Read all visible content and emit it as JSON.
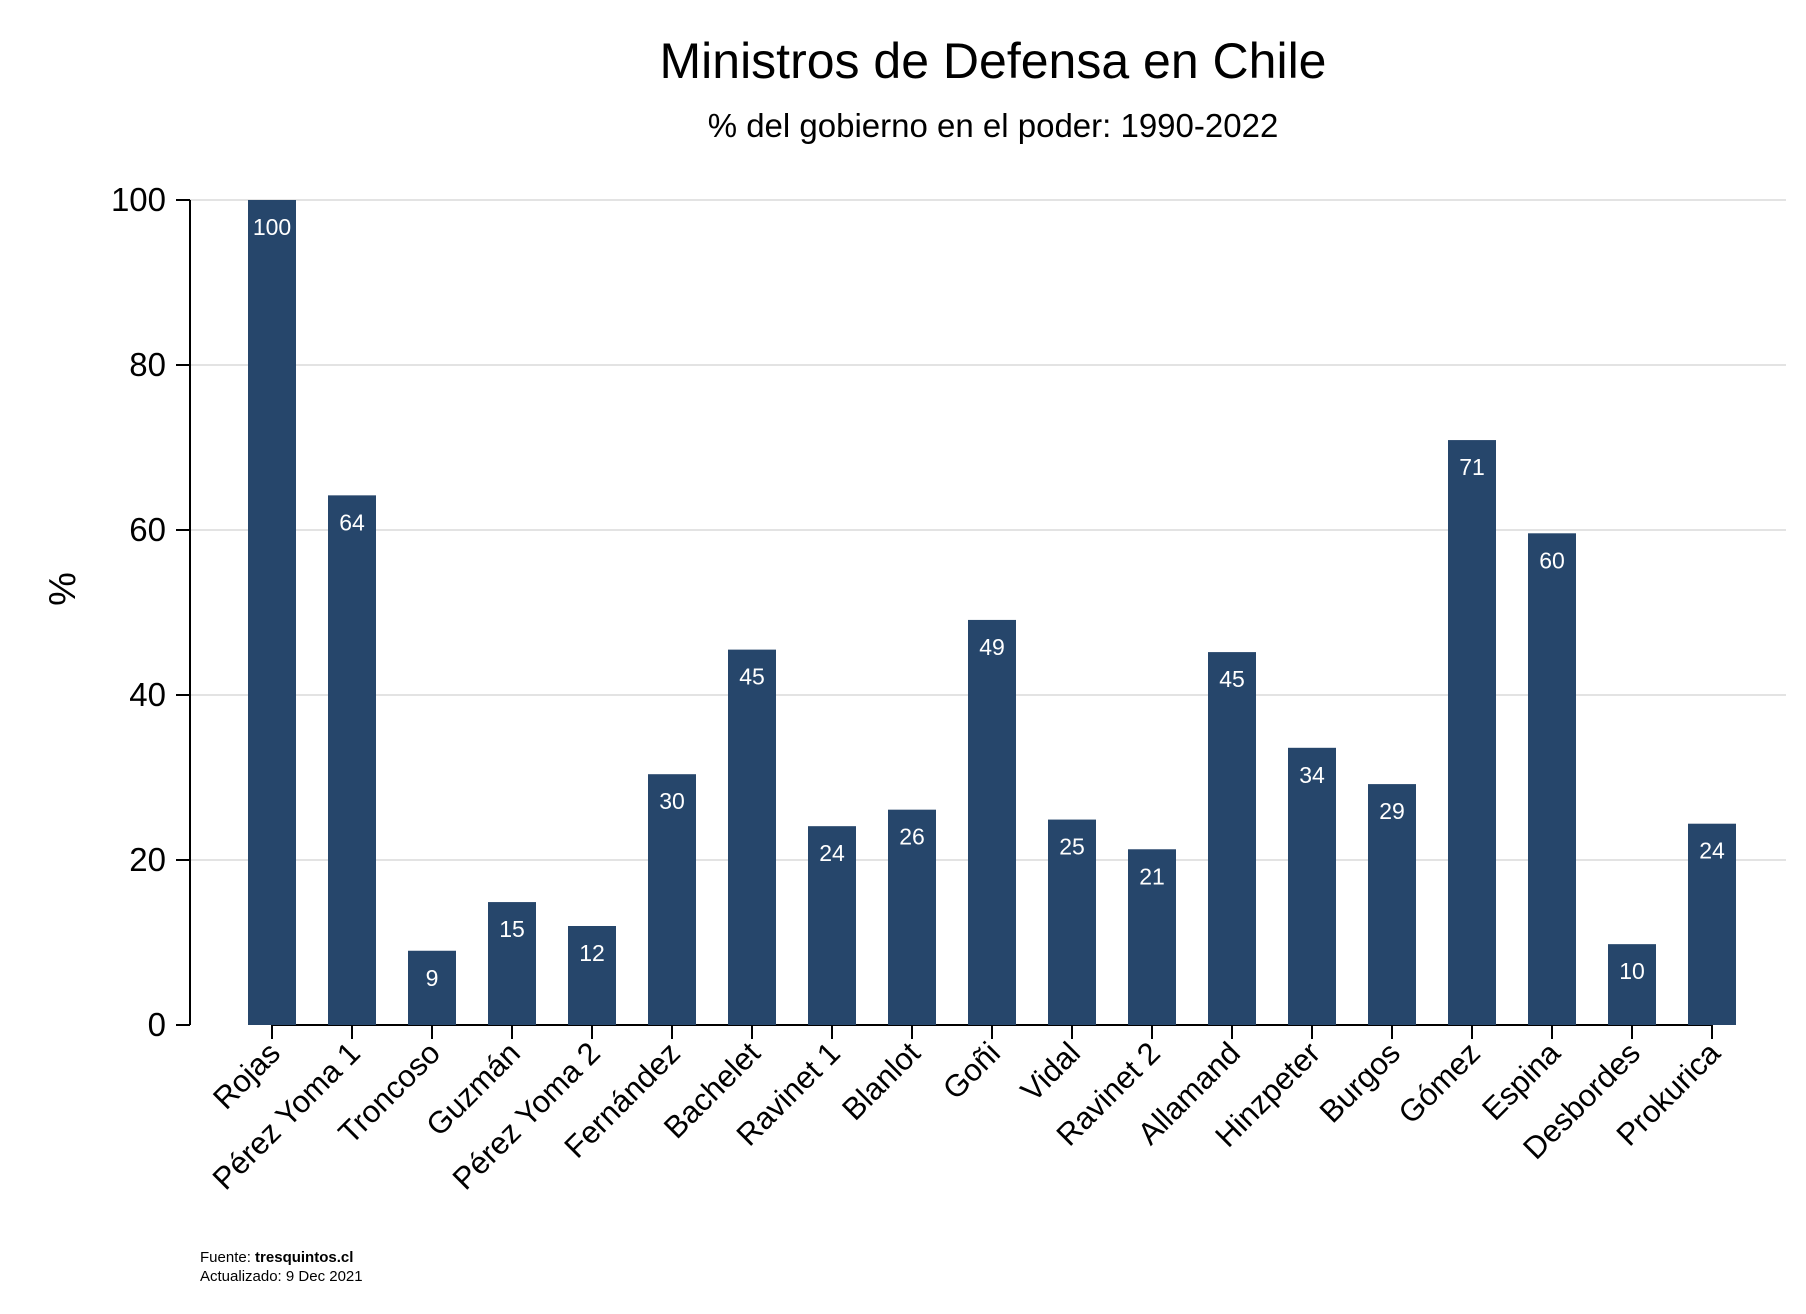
{
  "chart_data": {
    "type": "bar",
    "title": "Ministros de Defensa en Chile",
    "subtitle": "% del gobierno en el poder: 1990-2022",
    "xlabel": "",
    "ylabel": "%",
    "ylim": [
      0,
      100
    ],
    "yticks": [
      "0",
      "20",
      "40",
      "60",
      "80",
      "100"
    ],
    "grid": true,
    "categories": [
      "Rojas",
      "Pérez Yoma 1",
      "Troncoso",
      "Guzmán",
      "Pérez Yoma 2",
      "Fernández",
      "Bachelet",
      "Ravinet 1",
      "Blanlot",
      "Goñi",
      "Vidal",
      "Ravinet 2",
      "Allamand",
      "Hinzpeter",
      "Burgos",
      "Gómez",
      "Espina",
      "Desbordes",
      "Prokurica"
    ],
    "values": [
      100,
      64.2,
      9,
      14.9,
      12,
      30.4,
      45.5,
      24.1,
      26.1,
      49.1,
      24.9,
      21.3,
      45.2,
      33.6,
      29.2,
      70.9,
      59.6,
      9.8,
      24.4
    ],
    "data_labels": [
      "100",
      "64",
      "9",
      "15",
      "12",
      "30",
      "45",
      "24",
      "26",
      "49",
      "25",
      "21",
      "45",
      "34",
      "29",
      "71",
      "60",
      "10",
      "24"
    ],
    "bar_color": "#26466b"
  },
  "footer": {
    "source_label": "Fuente: ",
    "source_value": "tresquintos.cl",
    "updated": "Actualizado:  9 Dec 2021"
  }
}
